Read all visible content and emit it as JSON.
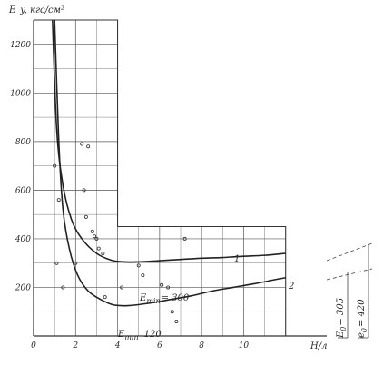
{
  "chart_data": {
    "type": "line",
    "title": "",
    "ylabel": "E_y, кгс/см²",
    "xlabel": "H/л",
    "xlim": [
      0,
      14
    ],
    "ylim": [
      0,
      1300
    ],
    "grid": true,
    "x_ticks": [
      0,
      2,
      4,
      6,
      8,
      10
    ],
    "x_tick_labels": [
      "0",
      "2",
      "4",
      "6",
      "8",
      "10"
    ],
    "y_ticks": [
      200,
      400,
      600,
      800,
      1000,
      1200
    ],
    "y_tick_labels": [
      "200",
      "400",
      "600",
      "800",
      "1000",
      "1200"
    ],
    "series": [
      {
        "name": "1",
        "x": [
          0.9,
          1.1,
          1.4,
          1.8,
          2.3,
          3.0,
          3.7,
          4.3,
          5.0,
          6.0,
          7.0,
          8.0,
          9.0,
          10.0,
          11.0,
          12.0
        ],
        "y": [
          1320,
          850,
          620,
          480,
          400,
          340,
          312,
          305,
          305,
          310,
          315,
          320,
          323,
          328,
          332,
          340
        ]
      },
      {
        "name": "2",
        "x": [
          1.0,
          1.2,
          1.4,
          1.7,
          2.1,
          2.6,
          3.2,
          3.8,
          4.5,
          5.5,
          6.5,
          7.5,
          8.5,
          9.5,
          10.5,
          11.5,
          12.0
        ],
        "y": [
          1320,
          800,
          520,
          360,
          250,
          185,
          150,
          128,
          125,
          135,
          150,
          165,
          185,
          200,
          215,
          232,
          240
        ]
      }
    ],
    "scatter_points": {
      "x": [
        1.0,
        1.2,
        1.1,
        1.4,
        2.0,
        2.3,
        2.6,
        2.4,
        2.5,
        2.8,
        2.9,
        3.0,
        3.1,
        3.3,
        3.4,
        4.2,
        5.0,
        5.2,
        6.1,
        6.4,
        6.8,
        6.6,
        7.2
      ],
      "y": [
        700,
        560,
        300,
        200,
        300,
        790,
        780,
        600,
        490,
        430,
        410,
        400,
        360,
        340,
        160,
        200,
        290,
        250,
        210,
        200,
        60,
        100,
        400
      ]
    },
    "annotations": {
      "curve1_label": "1",
      "curve2_label": "2",
      "emin_upper": "E",
      "emin_upper_sub": "min",
      "emin_upper_val": "= 300",
      "emin_lower": "E",
      "emin_lower_sub": "min",
      "emin_lower_val": "120",
      "asymptote_lower": "E",
      "asymptote_lower_sub": "0",
      "asymptote_lower_val": "= 305",
      "asymptote_upper": "e",
      "asymptote_upper_sub": "0",
      "asymptote_upper_val": "= 420"
    }
  }
}
